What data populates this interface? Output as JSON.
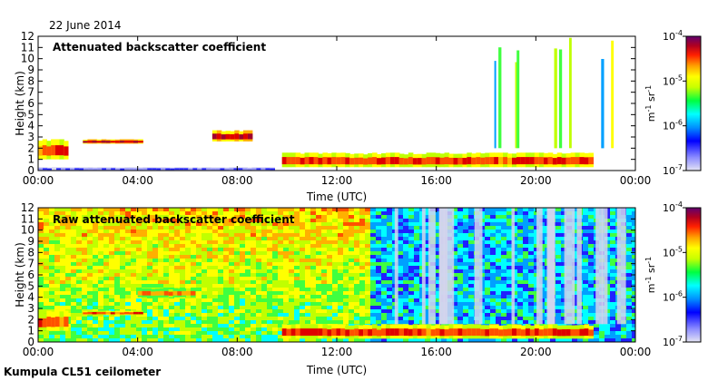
{
  "date_label": "22 June 2014",
  "footer_label": "Kumpula CL51 ceilometer",
  "colors": {
    "frame": "#000000",
    "colormap": [
      "#d8d8f0",
      "#9090ff",
      "#2020ff",
      "#00a0ff",
      "#00ffff",
      "#40ff40",
      "#c0ff00",
      "#ffff00",
      "#ffb000",
      "#ff5000",
      "#e00000",
      "#a00030",
      "#6a006a"
    ]
  },
  "chart_data": [
    {
      "type": "heatmap",
      "title": "Attenuated backscatter coefficient",
      "xlabel": "Time (UTC)",
      "ylabel": "Height (km)",
      "x_ticks": [
        "00:00",
        "04:00",
        "08:00",
        "12:00",
        "16:00",
        "20:00",
        "00:00"
      ],
      "xlim_hours": [
        0,
        24
      ],
      "y_ticks": [
        0,
        1,
        2,
        3,
        4,
        5,
        6,
        7,
        8,
        9,
        10,
        11,
        12
      ],
      "ylim": [
        0,
        12
      ],
      "colorbar": {
        "scale": "log",
        "range": [
          1e-07,
          0.0001
        ],
        "tick_labels": [
          "10^-4",
          "10^-5",
          "10^-6",
          "10^-7"
        ],
        "unit_label": "m^-1 sr^-1"
      },
      "features": [
        {
          "name": "surface aerosol layer",
          "start_h": 0.0,
          "end_h": 9.5,
          "bottom_km": 0.0,
          "top_km": 0.3,
          "level": 1
        },
        {
          "name": "morning cloud layer",
          "start_h": 0.0,
          "end_h": 1.2,
          "bottom_km": 1.0,
          "top_km": 2.8,
          "level": 9
        },
        {
          "name": "residual layer",
          "start_h": 1.8,
          "end_h": 4.2,
          "bottom_km": 2.4,
          "top_km": 2.8,
          "level": 10
        },
        {
          "name": "mid-level cloud",
          "start_h": 7.0,
          "end_h": 8.6,
          "bottom_km": 2.6,
          "top_km": 3.6,
          "level": 10
        },
        {
          "name": "boundary layer cloud",
          "start_h": 9.8,
          "end_h": 22.3,
          "bottom_km": 0.3,
          "top_km": 1.6,
          "level": 9
        },
        {
          "name": "high cloud streaks",
          "start_h": 18.3,
          "end_h": 23.8,
          "bottom_km": 2.0,
          "top_km": 12.0,
          "level": 5
        }
      ]
    },
    {
      "type": "heatmap",
      "title": "Raw attenuated backscatter coefficient",
      "xlabel": "Time (UTC)",
      "ylabel": "Height (km)",
      "x_ticks": [
        "00:00",
        "04:00",
        "08:00",
        "12:00",
        "16:00",
        "20:00",
        "00:00"
      ],
      "xlim_hours": [
        0,
        24
      ],
      "y_ticks": [
        0,
        1,
        2,
        3,
        4,
        5,
        6,
        7,
        8,
        9,
        10,
        11,
        12
      ],
      "ylim": [
        0,
        12
      ],
      "colorbar": {
        "scale": "log",
        "range": [
          1e-07,
          0.0001
        ],
        "tick_labels": [
          "10^-4",
          "10^-5",
          "10^-6",
          "10^-7"
        ],
        "unit_label": "m^-1 sr^-1"
      },
      "features": [
        {
          "name": "background noise",
          "start_h": 0.0,
          "end_h": 24.0,
          "bottom_km": 0.0,
          "top_km": 12.0,
          "level": 5
        },
        {
          "name": "morning cloud layer",
          "start_h": 0.0,
          "end_h": 1.2,
          "bottom_km": 1.0,
          "top_km": 2.8,
          "level": 9
        },
        {
          "name": "residual layer",
          "start_h": 1.8,
          "end_h": 4.2,
          "bottom_km": 2.4,
          "top_km": 2.8,
          "level": 9
        },
        {
          "name": "aerosol layer",
          "start_h": 4.0,
          "end_h": 6.3,
          "bottom_km": 4.0,
          "top_km": 4.8,
          "level": 8
        },
        {
          "name": "boundary layer cloud",
          "start_h": 9.8,
          "end_h": 22.3,
          "bottom_km": 0.3,
          "top_km": 1.6,
          "level": 9
        },
        {
          "name": "clear-sky streaks",
          "start_h": 13.5,
          "end_h": 23.5,
          "bottom_km": 1.6,
          "top_km": 12.0,
          "level": 0
        }
      ]
    }
  ]
}
